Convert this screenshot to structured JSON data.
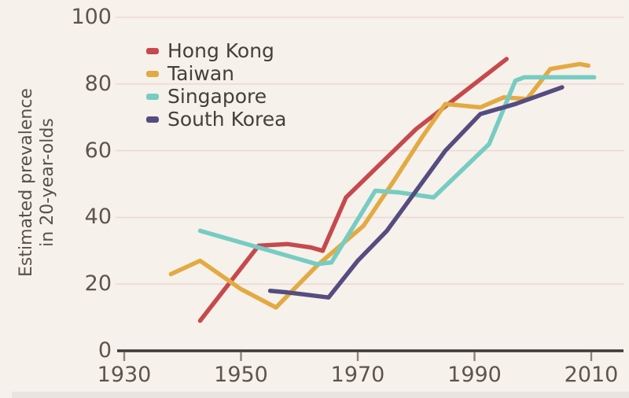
{
  "chart_data": {
    "type": "line",
    "title": "",
    "ylabel": "Estimated prevalence in 20-year-olds",
    "ylabel_lines": [
      "Estimated prevalence",
      "in 20-year-olds"
    ],
    "xlabel": "",
    "x_ticks": [
      1930,
      1950,
      1970,
      1990,
      2010
    ],
    "y_ticks": [
      0,
      20,
      40,
      60,
      80,
      100
    ],
    "x_range": [
      1930,
      2010
    ],
    "y_range": [
      0,
      100
    ],
    "grid": "horizontal",
    "legend_position": "top-left",
    "colors": {
      "background": "#f6f1ea",
      "gridline": "#eed8d6",
      "axis": "#3c3a35",
      "tick_text": "#5b554e",
      "legend_text": "#453f3a"
    },
    "series": [
      {
        "name": "Hong Kong",
        "color": "#c5494d",
        "points": [
          [
            1943,
            9
          ],
          [
            1953,
            31.5
          ],
          [
            1958,
            32
          ],
          [
            1962,
            31
          ],
          [
            1964,
            30
          ],
          [
            1968,
            46
          ],
          [
            1980,
            66.5
          ],
          [
            1995.5,
            87.5
          ]
        ]
      },
      {
        "name": "Taiwan",
        "color": "#e3aa43",
        "points": [
          [
            1938,
            23
          ],
          [
            1943,
            27
          ],
          [
            1950,
            18.5
          ],
          [
            1956,
            13
          ],
          [
            1963,
            25.5
          ],
          [
            1971,
            37.5
          ],
          [
            1976,
            50.5
          ],
          [
            1981,
            64
          ],
          [
            1985,
            74
          ],
          [
            1991,
            73
          ],
          [
            1995,
            76
          ],
          [
            1999,
            75.5
          ],
          [
            2003,
            84.5
          ],
          [
            2008,
            86
          ],
          [
            2009.5,
            85.5
          ]
        ]
      },
      {
        "name": "Singapore",
        "color": "#76ccc3",
        "points": [
          [
            1943,
            36
          ],
          [
            1963,
            26
          ],
          [
            1965.5,
            26.5
          ],
          [
            1973,
            48
          ],
          [
            1977,
            47.5
          ],
          [
            1983,
            46
          ],
          [
            1992.5,
            62
          ],
          [
            1997,
            81
          ],
          [
            1998.5,
            82
          ],
          [
            2010.5,
            82
          ]
        ]
      },
      {
        "name": "South Korea",
        "color": "#554d80",
        "points": [
          [
            1955,
            18
          ],
          [
            1958,
            17.5
          ],
          [
            1965,
            16
          ],
          [
            1970,
            27
          ],
          [
            1975,
            36
          ],
          [
            1985,
            60
          ],
          [
            1991,
            71
          ],
          [
            1997,
            74
          ],
          [
            2005,
            79
          ]
        ]
      }
    ]
  }
}
